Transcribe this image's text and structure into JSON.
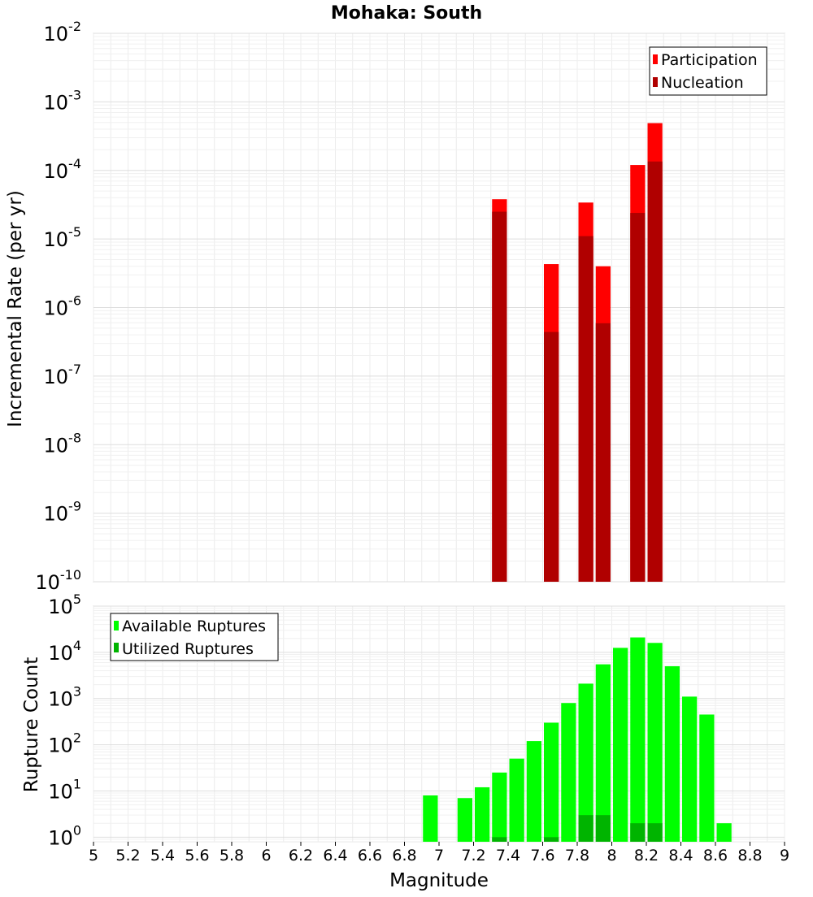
{
  "chart_data": [
    {
      "type": "bar",
      "title": "Mohaka: South",
      "xlabel": "Magnitude",
      "ylabel": "Incremental Rate (per yr)",
      "yscale": "log",
      "xlim": [
        5,
        9
      ],
      "ylim_exp": [
        -10,
        -2
      ],
      "ytick_exponents": [
        -2,
        -3,
        -4,
        -5,
        -6,
        -7,
        -8,
        -9,
        -10
      ],
      "bar_width": 0.1,
      "legend_position": "top-right",
      "series": [
        {
          "name": "Participation",
          "color": "#ff0000",
          "points": [
            {
              "x": 7.35,
              "y": 3.8e-05
            },
            {
              "x": 7.65,
              "y": 4.3e-06
            },
            {
              "x": 7.85,
              "y": 3.4e-05
            },
            {
              "x": 7.95,
              "y": 4e-06
            },
            {
              "x": 8.15,
              "y": 0.00012
            },
            {
              "x": 8.25,
              "y": 0.00049
            }
          ]
        },
        {
          "name": "Nucleation",
          "color": "#b00000",
          "points": [
            {
              "x": 7.35,
              "y": 2.5e-05
            },
            {
              "x": 7.65,
              "y": 4.4e-07
            },
            {
              "x": 7.85,
              "y": 1.1e-05
            },
            {
              "x": 7.95,
              "y": 5.9e-07
            },
            {
              "x": 8.15,
              "y": 2.4e-05
            },
            {
              "x": 8.25,
              "y": 0.000135
            }
          ]
        }
      ]
    },
    {
      "type": "bar",
      "title": "",
      "xlabel": "Magnitude",
      "ylabel": "Rupture Count",
      "yscale": "log",
      "xlim": [
        5,
        9
      ],
      "ylim_exp": [
        -0.1,
        5
      ],
      "ytick_exponents": [
        5,
        4,
        3,
        2,
        1,
        0
      ],
      "xticks": [
        "5",
        "5.2",
        "5.4",
        "5.6",
        "5.8",
        "6",
        "6.2",
        "6.4",
        "6.6",
        "6.8",
        "7",
        "7.2",
        "7.4",
        "7.6",
        "7.8",
        "8",
        "8.2",
        "8.4",
        "8.6",
        "8.8",
        "9"
      ],
      "bar_width": 0.1,
      "legend_position": "top-left",
      "series": [
        {
          "name": "Available Ruptures",
          "color": "#00ff00",
          "points": [
            {
              "x": 6.95,
              "y": 8
            },
            {
              "x": 7.15,
              "y": 7
            },
            {
              "x": 7.25,
              "y": 12
            },
            {
              "x": 7.35,
              "y": 25
            },
            {
              "x": 7.45,
              "y": 50
            },
            {
              "x": 7.55,
              "y": 120
            },
            {
              "x": 7.65,
              "y": 300
            },
            {
              "x": 7.75,
              "y": 800
            },
            {
              "x": 7.85,
              "y": 2100
            },
            {
              "x": 7.95,
              "y": 5500
            },
            {
              "x": 8.05,
              "y": 12500
            },
            {
              "x": 8.15,
              "y": 21000
            },
            {
              "x": 8.25,
              "y": 16000
            },
            {
              "x": 8.35,
              "y": 5000
            },
            {
              "x": 8.45,
              "y": 1100
            },
            {
              "x": 8.55,
              "y": 450
            },
            {
              "x": 8.65,
              "y": 2
            }
          ]
        },
        {
          "name": "Utilized Ruptures",
          "color": "#00b400",
          "points": [
            {
              "x": 7.35,
              "y": 1
            },
            {
              "x": 7.65,
              "y": 1
            },
            {
              "x": 7.85,
              "y": 3
            },
            {
              "x": 7.95,
              "y": 3
            },
            {
              "x": 8.15,
              "y": 2
            },
            {
              "x": 8.25,
              "y": 2
            }
          ]
        }
      ]
    }
  ]
}
